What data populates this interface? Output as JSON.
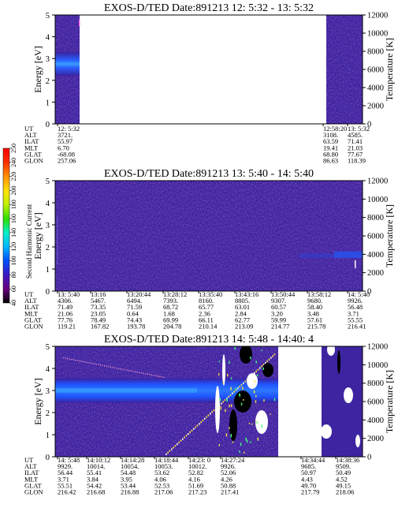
{
  "chart_data": [
    {
      "type": "heatmap",
      "title": "EXOS-D/TED   Date:891213  12: 5:32 - 13: 5:32",
      "ylabel": "Energy [eV]",
      "y2label": "Temperature [K]",
      "ylim": [
        0,
        5
      ],
      "y2lim": [
        0,
        12000
      ],
      "yticks": [
        "0",
        "1",
        "2",
        "3",
        "4",
        "5"
      ],
      "y2ticks": [
        "0",
        "2000",
        "4000",
        "6000",
        "8000",
        "10000",
        "12000"
      ],
      "data_segments": [
        {
          "start": "12: 5:32",
          "end": "12:09:10",
          "note": "data"
        },
        {
          "start": "12:58:20",
          "end": "13: 5:32",
          "note": "data"
        }
      ],
      "table": {
        "row_labels": [
          "UT",
          "ALT",
          "ILAT",
          "MLT",
          "GLAT",
          "GLON"
        ],
        "columns": [
          {
            "values": [
              "12: 5:32",
              "3721.",
              "55.97",
              "6.70",
              "-68.08",
              "257.06"
            ]
          },
          {
            "values": [
              "12:58:20",
              "3108.",
              "63.59",
              "19.41",
              "68.80",
              "86.63"
            ]
          },
          {
            "values": [
              "13: 5:32",
              "4585.",
              "71.41",
              "21.03",
              "77.67",
              "118.39"
            ]
          }
        ]
      }
    },
    {
      "type": "heatmap",
      "title": "EXOS-D/TED   Date:891213  13: 5:40 - 14: 5:40",
      "ylabel": "Energy [eV]",
      "y2label": "Temperature [K]",
      "ylim": [
        0,
        5
      ],
      "y2lim": [
        0,
        12000
      ],
      "yticks": [
        "0",
        "1",
        "2",
        "3",
        "4",
        "5"
      ],
      "y2ticks": [
        "0",
        "2000",
        "4000",
        "6000",
        "8000",
        "10000",
        "12000"
      ],
      "table": {
        "row_labels": [
          "UT",
          "ALT",
          "ILAT",
          "MLT",
          "GLAT",
          "GLON"
        ],
        "columns": [
          {
            "values": [
              "13: 5:40",
              "4306.",
              "71.49",
              "21.06",
              "77.76",
              "119.21"
            ]
          },
          {
            "values": [
              "13:16",
              "5467.",
              "73.35",
              "23.05",
              "78.49",
              "167.82"
            ]
          },
          {
            "values": [
              "13:20:44",
              "6494.",
              "71.59",
              "0.64",
              "74.43",
              "193.78"
            ]
          },
          {
            "values": [
              "13:28:12",
              "7393.",
              "68.72",
              "1.68",
              "69.99",
              "204.78"
            ]
          },
          {
            "values": [
              "13:35:40",
              "8160.",
              "65.77",
              "2.36",
              "66.11",
              "210.14"
            ]
          },
          {
            "values": [
              "13:43:16",
              "8805.",
              "63.01",
              "2.84",
              "62.77",
              "213.09"
            ]
          },
          {
            "values": [
              "13:50:44",
              "9307.",
              "60.57",
              "3.20",
              "59.99",
              "214.77"
            ]
          },
          {
            "values": [
              "13:58:12",
              "9680.",
              "58.40",
              "3.48",
              "57.61",
              "215.78"
            ]
          },
          {
            "values": [
              "14: 5:40",
              "9926.",
              "56.48",
              "3.71",
              "55.55",
              "216.41"
            ]
          }
        ]
      }
    },
    {
      "type": "heatmap",
      "title": "EXOS-D/TED   Date:891213  14: 5:48 - 14:40: 4",
      "ylabel": "Energy [eV]",
      "y2label": "Temperature [K]",
      "ylim": [
        0,
        5
      ],
      "y2lim": [
        0,
        12000
      ],
      "yticks": [
        "0",
        "1",
        "2",
        "3",
        "4",
        "5"
      ],
      "y2ticks": [
        "0",
        "2000",
        "4000",
        "6000",
        "8000",
        "10000",
        "12000"
      ],
      "table": {
        "row_labels": [
          "UT",
          "ALT",
          "ILAT",
          "MLT",
          "GLAT",
          "GLON"
        ],
        "columns": [
          {
            "values": [
              "14: 5:48",
              "9929.",
              "56.44",
              "3.71",
              "55.51",
              "216.42"
            ]
          },
          {
            "values": [
              "14:10:12",
              "10014.",
              "55.41",
              "3.84",
              "54.42",
              "216.68"
            ]
          },
          {
            "values": [
              "14:14:28",
              "10054.",
              "54.48",
              "3.95",
              "53.44",
              "216.88"
            ]
          },
          {
            "values": [
              "14:18:44",
              "10053.",
              "53.62",
              "4.06",
              "52.53",
              "217.06"
            ]
          },
          {
            "values": [
              "14:23: 0",
              "10012.",
              "52.82",
              "4.16",
              "51.69",
              "217.23"
            ]
          },
          {
            "values": [
              "14:27:24",
              "9926.",
              "52.06",
              "4.26",
              "50.88",
              "217.41"
            ]
          },
          {
            "values": [
              "14:34:44",
              "9685.",
              "50.97",
              "4.43",
              "49.70",
              "217.79"
            ]
          },
          {
            "values": [
              "14:38:36",
              "9509.",
              "50.49",
              "4.52",
              "49.15",
              "218.06"
            ]
          }
        ]
      }
    }
  ],
  "colorbar": {
    "label": "Second Harmonic Current",
    "ticks": [
      "40",
      "60",
      "80",
      "100",
      "120",
      "140",
      "160",
      "180",
      "200",
      "220",
      "240",
      "250"
    ],
    "range": [
      40,
      250
    ],
    "colors": [
      "#000000",
      "#6a0080",
      "#3c18c0",
      "#0050ff",
      "#00b8ff",
      "#00f0c8",
      "#30e000",
      "#c0f000",
      "#ffe000",
      "#ff9000",
      "#ff3000",
      "#ff0000"
    ]
  },
  "colors": {
    "background": "#3a22a0",
    "band": "#1a66ff",
    "band_core": "#2e80ff",
    "noise": "#5a2a90"
  }
}
